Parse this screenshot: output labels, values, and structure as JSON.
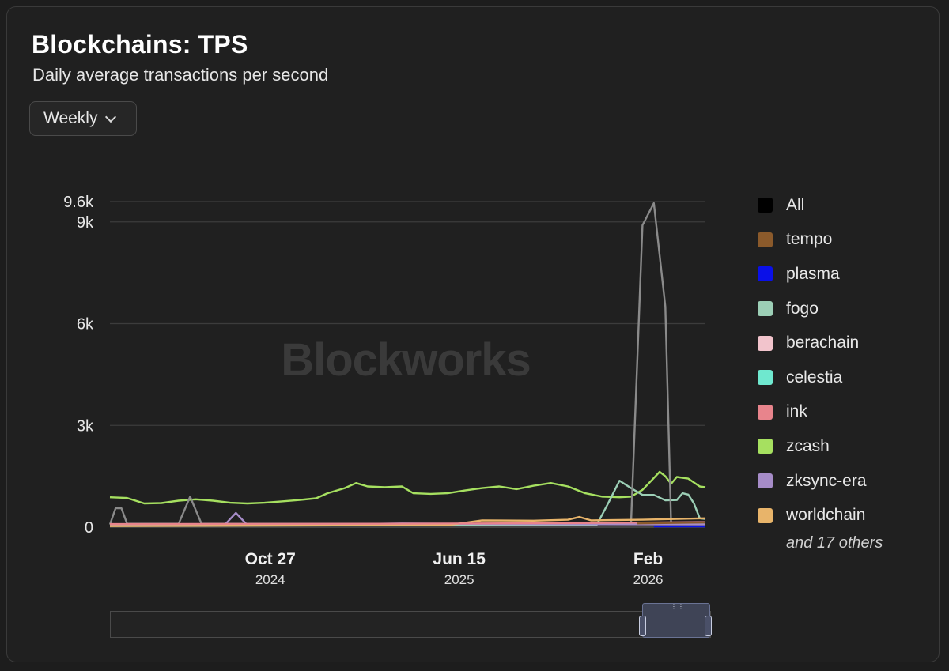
{
  "header": {
    "title": "Blockchains: TPS",
    "subtitle": "Daily average transactions per second"
  },
  "controls": {
    "interval_selected": "Weekly"
  },
  "watermark": "Blockworks",
  "legend": {
    "items": [
      {
        "name": "All",
        "color": "#000000"
      },
      {
        "name": "tempo",
        "color": "#8b5a2b"
      },
      {
        "name": "plasma",
        "color": "#0a10e8"
      },
      {
        "name": "fogo",
        "color": "#9ccfb6"
      },
      {
        "name": "berachain",
        "color": "#f2c4cc"
      },
      {
        "name": "celestia",
        "color": "#6fe8cf"
      },
      {
        "name": "ink",
        "color": "#e8848c"
      },
      {
        "name": "zcash",
        "color": "#a6e060"
      },
      {
        "name": "zksync-era",
        "color": "#a68cc8"
      },
      {
        "name": "worldchain",
        "color": "#e8b46a"
      }
    ],
    "more": "and 17 others"
  },
  "chart_data": {
    "type": "line",
    "title": "Blockchains: TPS",
    "subtitle": "Daily average transactions per second",
    "ylim": [
      0,
      9600
    ],
    "yticks": [
      {
        "value": 0,
        "label": "0"
      },
      {
        "value": 3000,
        "label": "3k"
      },
      {
        "value": 6000,
        "label": "6k"
      },
      {
        "value": 9000,
        "label": "9k"
      },
      {
        "value": 9600,
        "label": "9.6k"
      }
    ],
    "xlim": [
      "2024-04-14",
      "2026-04-12"
    ],
    "xticks": [
      {
        "date": "2024-10-27",
        "label": "Oct 27",
        "year": "2024"
      },
      {
        "date": "2025-06-15",
        "label": "Jun 15",
        "year": "2025"
      },
      {
        "date": "2026-02-01",
        "label": "Feb",
        "year": "2026"
      }
    ],
    "grid": true,
    "legend_position": "right",
    "series": [
      {
        "name": "zcash",
        "color": "#a6e060",
        "points": [
          [
            "2024-04-14",
            880
          ],
          [
            "2024-05-05",
            860
          ],
          [
            "2024-05-26",
            700
          ],
          [
            "2024-06-16",
            710
          ],
          [
            "2024-07-07",
            780
          ],
          [
            "2024-07-28",
            820
          ],
          [
            "2024-08-18",
            780
          ],
          [
            "2024-09-08",
            720
          ],
          [
            "2024-09-29",
            700
          ],
          [
            "2024-10-20",
            720
          ],
          [
            "2024-11-10",
            760
          ],
          [
            "2024-12-01",
            800
          ],
          [
            "2024-12-22",
            850
          ],
          [
            "2025-01-05",
            1000
          ],
          [
            "2025-01-26",
            1150
          ],
          [
            "2025-02-09",
            1300
          ],
          [
            "2025-02-23",
            1200
          ],
          [
            "2025-03-16",
            1180
          ],
          [
            "2025-04-06",
            1200
          ],
          [
            "2025-04-20",
            1000
          ],
          [
            "2025-05-11",
            980
          ],
          [
            "2025-06-01",
            1000
          ],
          [
            "2025-06-22",
            1080
          ],
          [
            "2025-07-13",
            1150
          ],
          [
            "2025-08-03",
            1200
          ],
          [
            "2025-08-24",
            1120
          ],
          [
            "2025-09-14",
            1220
          ],
          [
            "2025-10-05",
            1300
          ],
          [
            "2025-10-26",
            1200
          ],
          [
            "2025-11-16",
            1000
          ],
          [
            "2025-12-07",
            900
          ],
          [
            "2025-12-28",
            880
          ],
          [
            "2026-01-11",
            900
          ],
          [
            "2026-01-25",
            1100
          ],
          [
            "2026-02-08",
            1450
          ],
          [
            "2026-02-15",
            1630
          ],
          [
            "2026-02-22",
            1500
          ],
          [
            "2026-03-01",
            1280
          ],
          [
            "2026-03-08",
            1480
          ],
          [
            "2026-03-22",
            1430
          ],
          [
            "2026-04-05",
            1200
          ],
          [
            "2026-04-12",
            1180
          ]
        ]
      },
      {
        "name": "fogo",
        "color": "#9ccfb6",
        "points": [
          [
            "2024-04-14",
            60
          ],
          [
            "2025-11-30",
            60
          ],
          [
            "2025-12-14",
            700
          ],
          [
            "2025-12-28",
            1370
          ],
          [
            "2026-01-11",
            1150
          ],
          [
            "2026-01-25",
            950
          ],
          [
            "2026-02-08",
            950
          ],
          [
            "2026-02-22",
            790
          ],
          [
            "2026-03-08",
            800
          ],
          [
            "2026-03-15",
            1000
          ],
          [
            "2026-03-22",
            960
          ],
          [
            "2026-03-29",
            700
          ],
          [
            "2026-04-05",
            260
          ],
          [
            "2026-04-12",
            240
          ]
        ]
      },
      {
        "name": "All",
        "color": "#8a8a8a",
        "points": [
          [
            "2024-04-14",
            80
          ],
          [
            "2024-04-21",
            560
          ],
          [
            "2024-04-28",
            560
          ],
          [
            "2024-05-05",
            100
          ],
          [
            "2024-07-07",
            100
          ],
          [
            "2024-07-21",
            900
          ],
          [
            "2024-08-04",
            100
          ],
          [
            "2026-01-11",
            100
          ],
          [
            "2026-01-25",
            8900
          ],
          [
            "2026-02-08",
            9550
          ],
          [
            "2026-02-22",
            6500
          ],
          [
            "2026-03-01",
            100
          ],
          [
            "2026-04-12",
            100
          ]
        ]
      },
      {
        "name": "zksync-era",
        "color": "#a68cc8",
        "points": [
          [
            "2024-04-14",
            60
          ],
          [
            "2024-09-01",
            60
          ],
          [
            "2024-09-15",
            420
          ],
          [
            "2024-09-29",
            60
          ],
          [
            "2025-01-05",
            80
          ],
          [
            "2025-04-06",
            110
          ],
          [
            "2025-08-03",
            90
          ],
          [
            "2026-04-12",
            80
          ]
        ]
      },
      {
        "name": "worldchain",
        "color": "#e8b46a",
        "points": [
          [
            "2024-04-14",
            30
          ],
          [
            "2025-06-01",
            60
          ],
          [
            "2025-07-13",
            200
          ],
          [
            "2025-09-14",
            190
          ],
          [
            "2025-10-26",
            220
          ],
          [
            "2025-11-09",
            300
          ],
          [
            "2025-11-23",
            200
          ],
          [
            "2026-01-25",
            220
          ],
          [
            "2026-04-12",
            260
          ]
        ]
      },
      {
        "name": "ink",
        "color": "#e8848c",
        "points": [
          [
            "2024-04-14",
            90
          ],
          [
            "2025-04-06",
            100
          ],
          [
            "2025-10-26",
            120
          ],
          [
            "2026-04-12",
            150
          ]
        ]
      },
      {
        "name": "tempo",
        "color": "#8b5a2b",
        "points": [
          [
            "2026-01-18",
            110
          ],
          [
            "2026-04-12",
            140
          ]
        ]
      },
      {
        "name": "plasma",
        "color": "#0a10e8",
        "points": [
          [
            "2026-02-08",
            20
          ],
          [
            "2026-04-12",
            20
          ]
        ]
      }
    ]
  }
}
